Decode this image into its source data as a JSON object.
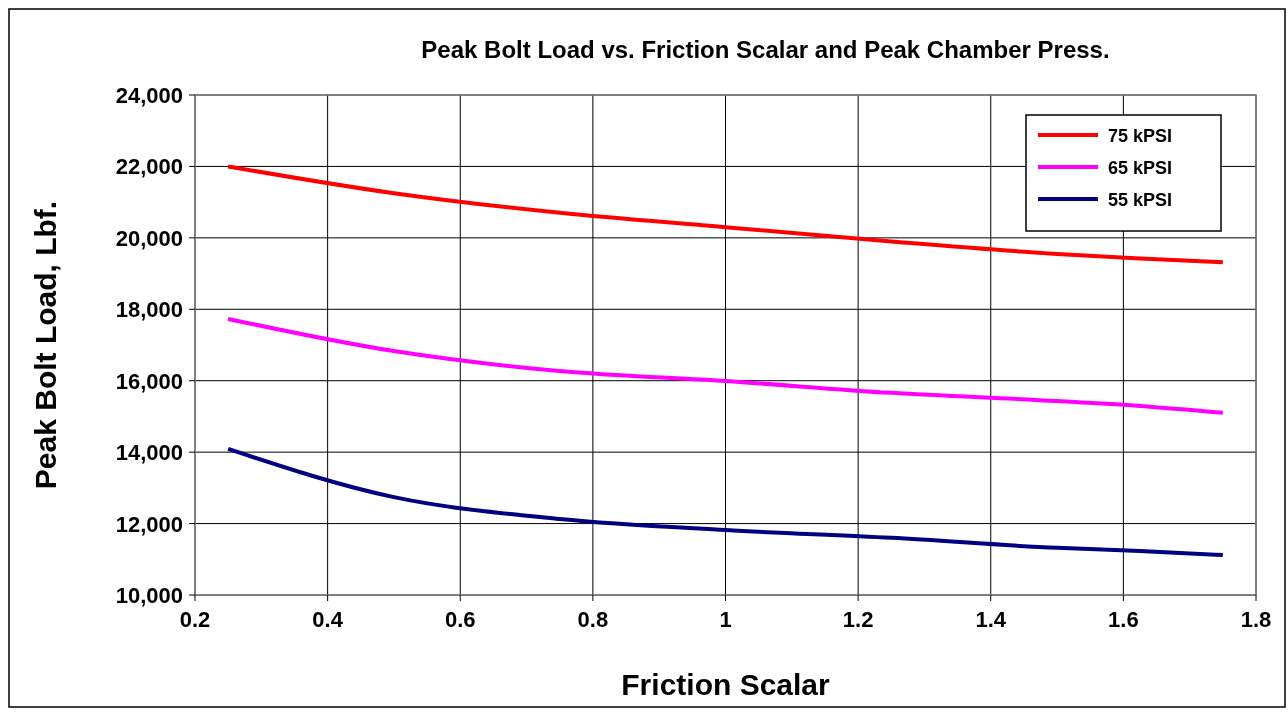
{
  "chart_data": {
    "type": "line",
    "title": "Peak Bolt Load vs. Friction Scalar and Peak Chamber Press.",
    "xlabel": "Friction Scalar",
    "ylabel": "Peak Bolt Load, Lbf.",
    "x": [
      0.25,
      0.5,
      0.75,
      1.0,
      1.25,
      1.5,
      1.625,
      1.75
    ],
    "series": [
      {
        "name": "75 kPSI",
        "color": "#ff0000",
        "values": [
          22000,
          21250,
          20700,
          20300,
          19900,
          19550,
          19420,
          19320
        ]
      },
      {
        "name": "65 kPSI",
        "color": "#ff00ff",
        "values": [
          17730,
          16830,
          16270,
          15990,
          15660,
          15430,
          15290,
          15100
        ]
      },
      {
        "name": "55 kPSI",
        "color": "#000080",
        "values": [
          14090,
          12740,
          12130,
          11820,
          11600,
          11320,
          11230,
          11120
        ]
      }
    ],
    "xlim": [
      0.2,
      1.8
    ],
    "xticks": [
      0.2,
      0.4,
      0.6,
      0.8,
      1,
      1.2,
      1.4,
      1.6,
      1.8
    ],
    "ylim": [
      10000,
      24000
    ],
    "yticks": [
      {
        "value": 10000,
        "label": "10,000"
      },
      {
        "value": 12000,
        "label": "12,000"
      },
      {
        "value": 14000,
        "label": "14,000"
      },
      {
        "value": 16000,
        "label": "16,000"
      },
      {
        "value": 18000,
        "label": "18,000"
      },
      {
        "value": 20000,
        "label": "20,000"
      },
      {
        "value": 22000,
        "label": "22,000"
      },
      {
        "value": 24000,
        "label": "24,000"
      }
    ],
    "grid": true,
    "legend": "top right",
    "marker": "none",
    "line_style": "solid"
  }
}
